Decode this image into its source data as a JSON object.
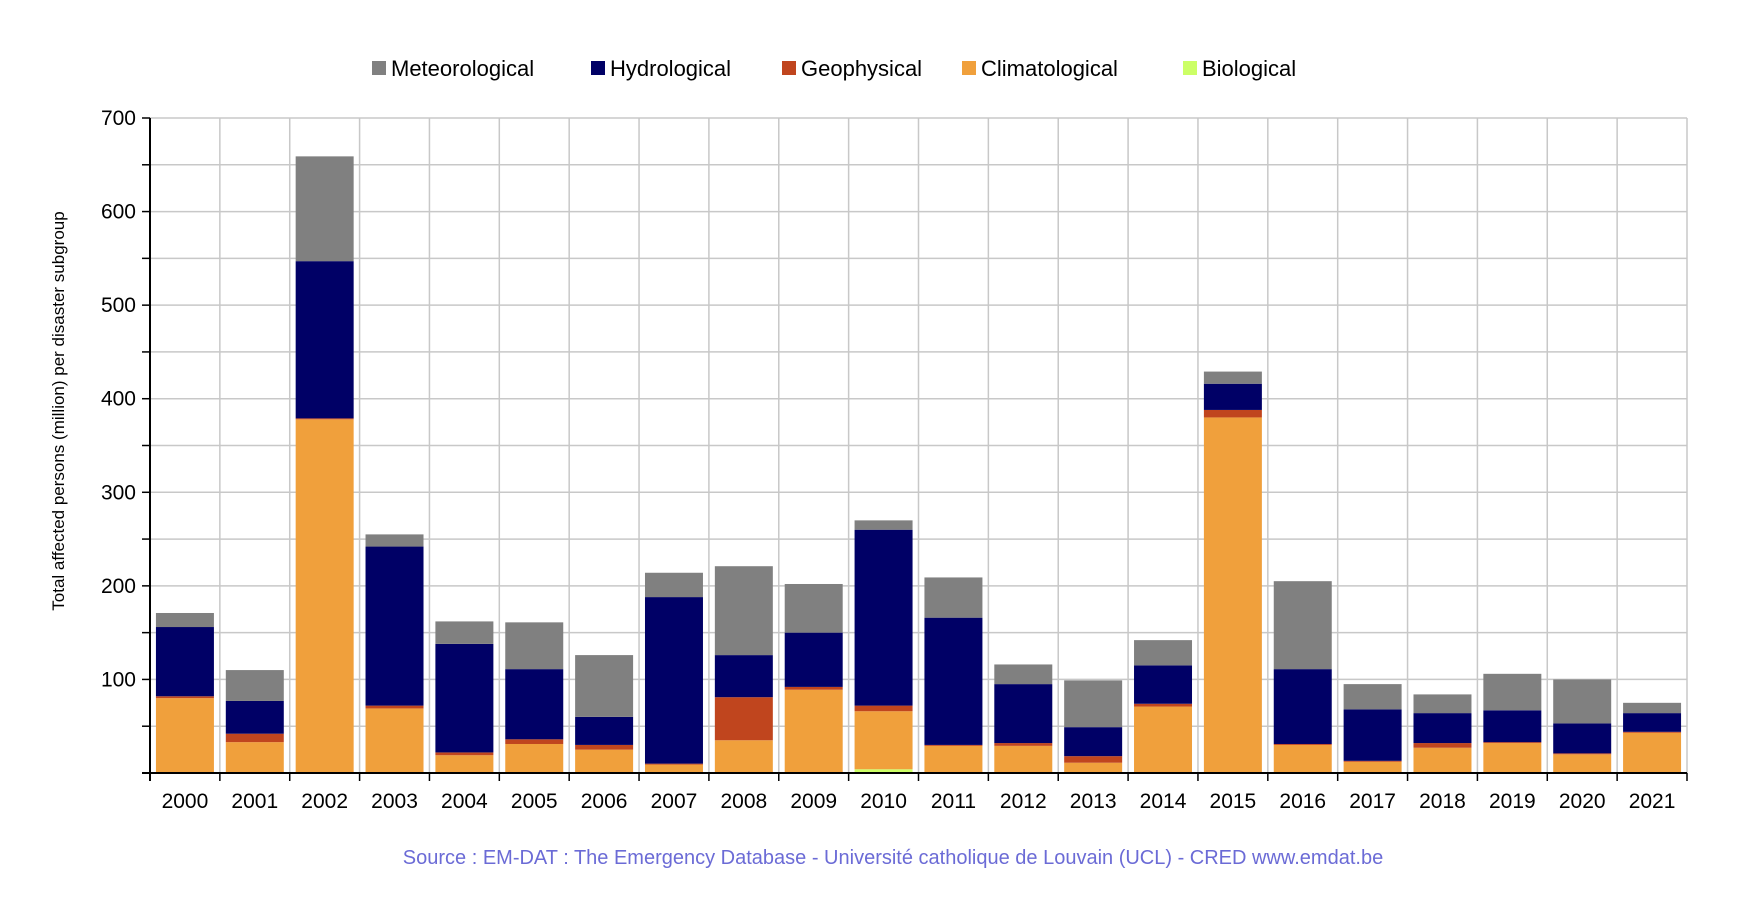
{
  "chart_data": {
    "type": "bar",
    "stacked": true,
    "ylabel": "Total affected persons (million) per disaster subgroup",
    "ylim": [
      0,
      700
    ],
    "yticks": [
      100,
      200,
      300,
      400,
      500,
      600,
      700
    ],
    "grid": true,
    "legend_position": "top",
    "categories": [
      "2000",
      "2001",
      "2002",
      "2003",
      "2004",
      "2005",
      "2006",
      "2007",
      "2008",
      "2009",
      "2010",
      "2011",
      "2012",
      "2013",
      "2014",
      "2015",
      "2016",
      "2017",
      "2018",
      "2019",
      "2020",
      "2021"
    ],
    "series": [
      {
        "name": "Biological",
        "color": "#ccff66",
        "values": [
          0,
          0,
          0,
          0,
          0,
          0,
          0,
          0,
          0,
          0,
          4,
          0,
          0,
          0,
          0,
          0,
          0,
          0,
          0,
          1,
          0,
          1
        ]
      },
      {
        "name": "Climatological",
        "color": "#f0a03c",
        "values": [
          80,
          33,
          378,
          69,
          19,
          31,
          25,
          9,
          35,
          89,
          62,
          29,
          29,
          11,
          71,
          380,
          30,
          12,
          27,
          31,
          20,
          42
        ]
      },
      {
        "name": "Geophysical",
        "color": "#c0451e",
        "values": [
          2,
          9,
          1,
          3,
          3,
          5,
          5,
          1,
          46,
          3,
          6,
          1,
          3,
          7,
          3,
          8,
          1,
          1,
          5,
          1,
          1,
          1
        ]
      },
      {
        "name": "Hydrological",
        "color": "#000066",
        "values": [
          74,
          35,
          168,
          170,
          116,
          75,
          30,
          178,
          45,
          58,
          188,
          136,
          63,
          31,
          41,
          28,
          80,
          55,
          32,
          34,
          32,
          20
        ]
      },
      {
        "name": "Meteorological",
        "color": "#808080",
        "values": [
          15,
          33,
          112,
          13,
          24,
          50,
          66,
          26,
          95,
          52,
          10,
          43,
          21,
          50,
          27,
          13,
          94,
          27,
          20,
          39,
          47,
          11
        ]
      }
    ],
    "legend_order": [
      "Meteorological",
      "Hydrological",
      "Geophysical",
      "Climatological",
      "Biological"
    ]
  },
  "source": "Source : EM-DAT : The Emergency Database - Université catholique de Louvain (UCL) - CRED  www.emdat.be"
}
